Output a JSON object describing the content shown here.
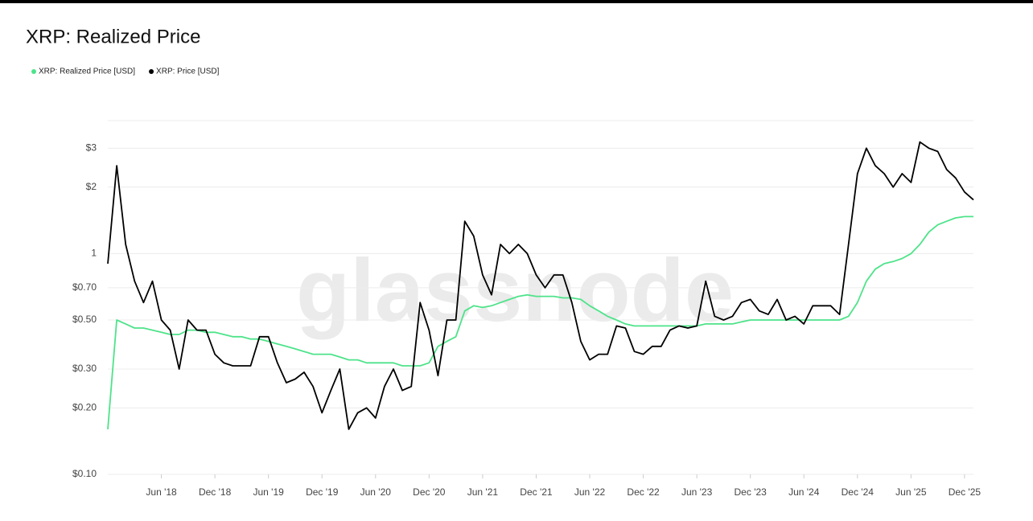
{
  "chart_data": {
    "type": "line",
    "title": "XRP: Realized Price",
    "watermark": "glassnode",
    "log_scale": true,
    "grid": true,
    "legend": "top-left",
    "x": [
      "2017-12",
      "2018-01",
      "2018-02",
      "2018-03",
      "2018-04",
      "2018-05",
      "2018-06",
      "2018-07",
      "2018-08",
      "2018-09",
      "2018-10",
      "2018-11",
      "2018-12",
      "2019-01",
      "2019-02",
      "2019-03",
      "2019-04",
      "2019-05",
      "2019-06",
      "2019-07",
      "2019-08",
      "2019-09",
      "2019-10",
      "2019-11",
      "2019-12",
      "2020-01",
      "2020-02",
      "2020-03",
      "2020-04",
      "2020-05",
      "2020-06",
      "2020-07",
      "2020-08",
      "2020-09",
      "2020-10",
      "2020-11",
      "2020-12",
      "2021-01",
      "2021-02",
      "2021-03",
      "2021-04",
      "2021-05",
      "2021-06",
      "2021-07",
      "2021-08",
      "2021-09",
      "2021-10",
      "2021-11",
      "2021-12",
      "2022-01",
      "2022-02",
      "2022-03",
      "2022-04",
      "2022-05",
      "2022-06",
      "2022-07",
      "2022-08",
      "2022-09",
      "2022-10",
      "2022-11",
      "2022-12",
      "2023-01",
      "2023-02",
      "2023-03",
      "2023-04",
      "2023-05",
      "2023-06",
      "2023-07",
      "2023-08",
      "2023-09",
      "2023-10",
      "2023-11",
      "2023-12",
      "2024-01",
      "2024-02",
      "2024-03",
      "2024-04",
      "2024-05",
      "2024-06",
      "2024-07",
      "2024-08",
      "2024-09",
      "2024-10",
      "2024-11",
      "2024-12",
      "2025-01",
      "2025-02",
      "2025-03",
      "2025-04",
      "2025-05",
      "2025-06",
      "2025-07",
      "2025-08",
      "2025-09",
      "2025-10",
      "2025-11",
      "2025-12",
      "2026-01"
    ],
    "xlim": [
      "2017-12",
      "2026-01"
    ],
    "xticks": [
      {
        "value": "2018-06",
        "label": "Jun '18"
      },
      {
        "value": "2018-12",
        "label": "Dec '18"
      },
      {
        "value": "2019-06",
        "label": "Jun '19"
      },
      {
        "value": "2019-12",
        "label": "Dec '19"
      },
      {
        "value": "2020-06",
        "label": "Jun '20"
      },
      {
        "value": "2020-12",
        "label": "Dec '20"
      },
      {
        "value": "2021-06",
        "label": "Jun '21"
      },
      {
        "value": "2021-12",
        "label": "Dec '21"
      },
      {
        "value": "2022-06",
        "label": "Jun '22"
      },
      {
        "value": "2022-12",
        "label": "Dec '22"
      },
      {
        "value": "2023-06",
        "label": "Jun '23"
      },
      {
        "value": "2023-12",
        "label": "Dec '23"
      },
      {
        "value": "2024-06",
        "label": "Jun '24"
      },
      {
        "value": "2024-12",
        "label": "Dec '24"
      },
      {
        "value": "2025-06",
        "label": "Jun '25"
      },
      {
        "value": "2025-12",
        "label": "Dec '25"
      }
    ],
    "ylim": [
      0.1,
      4
    ],
    "yticks": [
      {
        "value": 0.1,
        "label": "$0.10"
      },
      {
        "value": 0.2,
        "label": "$0.20"
      },
      {
        "value": 0.3,
        "label": "$0.30"
      },
      {
        "value": 0.5,
        "label": "$0.50"
      },
      {
        "value": 0.7,
        "label": "$0.70"
      },
      1,
      {
        "value": 2,
        "label": "$2"
      },
      {
        "value": 3,
        "label": "$3"
      }
    ],
    "series": [
      {
        "name": "XRP: Realized Price [USD]",
        "color": "#4ee38a",
        "values": [
          0.16,
          0.5,
          0.48,
          0.46,
          0.46,
          0.45,
          0.44,
          0.43,
          0.43,
          0.45,
          0.45,
          0.44,
          0.44,
          0.43,
          0.42,
          0.42,
          0.41,
          0.41,
          0.4,
          0.39,
          0.38,
          0.37,
          0.36,
          0.35,
          0.35,
          0.35,
          0.34,
          0.33,
          0.33,
          0.32,
          0.32,
          0.32,
          0.32,
          0.31,
          0.31,
          0.31,
          0.32,
          0.38,
          0.4,
          0.42,
          0.55,
          0.58,
          0.57,
          0.58,
          0.6,
          0.62,
          0.64,
          0.65,
          0.64,
          0.64,
          0.64,
          0.63,
          0.63,
          0.62,
          0.58,
          0.55,
          0.52,
          0.5,
          0.48,
          0.47,
          0.47,
          0.47,
          0.47,
          0.47,
          0.47,
          0.47,
          0.47,
          0.48,
          0.48,
          0.48,
          0.48,
          0.49,
          0.5,
          0.5,
          0.5,
          0.5,
          0.5,
          0.5,
          0.5,
          0.5,
          0.5,
          0.5,
          0.5,
          0.52,
          0.6,
          0.75,
          0.85,
          0.9,
          0.92,
          0.95,
          1.0,
          1.1,
          1.25,
          1.35,
          1.4,
          1.45,
          1.47,
          1.47
        ]
      },
      {
        "name": "XRP: Price [USD]",
        "color": "#000000",
        "values": [
          0.9,
          2.5,
          1.1,
          0.75,
          0.6,
          0.75,
          0.5,
          0.45,
          0.3,
          0.5,
          0.45,
          0.45,
          0.35,
          0.32,
          0.31,
          0.31,
          0.31,
          0.42,
          0.42,
          0.32,
          0.26,
          0.27,
          0.29,
          0.25,
          0.19,
          0.24,
          0.3,
          0.16,
          0.19,
          0.2,
          0.18,
          0.25,
          0.3,
          0.24,
          0.25,
          0.6,
          0.45,
          0.28,
          0.5,
          0.5,
          1.4,
          1.2,
          0.8,
          0.65,
          1.1,
          1.0,
          1.1,
          1.0,
          0.8,
          0.7,
          0.8,
          0.8,
          0.6,
          0.4,
          0.33,
          0.35,
          0.35,
          0.47,
          0.46,
          0.36,
          0.35,
          0.38,
          0.38,
          0.45,
          0.47,
          0.46,
          0.47,
          0.75,
          0.52,
          0.5,
          0.52,
          0.6,
          0.62,
          0.55,
          0.53,
          0.62,
          0.5,
          0.52,
          0.48,
          0.58,
          0.58,
          0.58,
          0.53,
          1.1,
          2.3,
          3.0,
          2.5,
          2.3,
          2.0,
          2.3,
          2.1,
          3.2,
          3.0,
          2.9,
          2.4,
          2.2,
          1.9,
          1.75
        ]
      }
    ]
  }
}
